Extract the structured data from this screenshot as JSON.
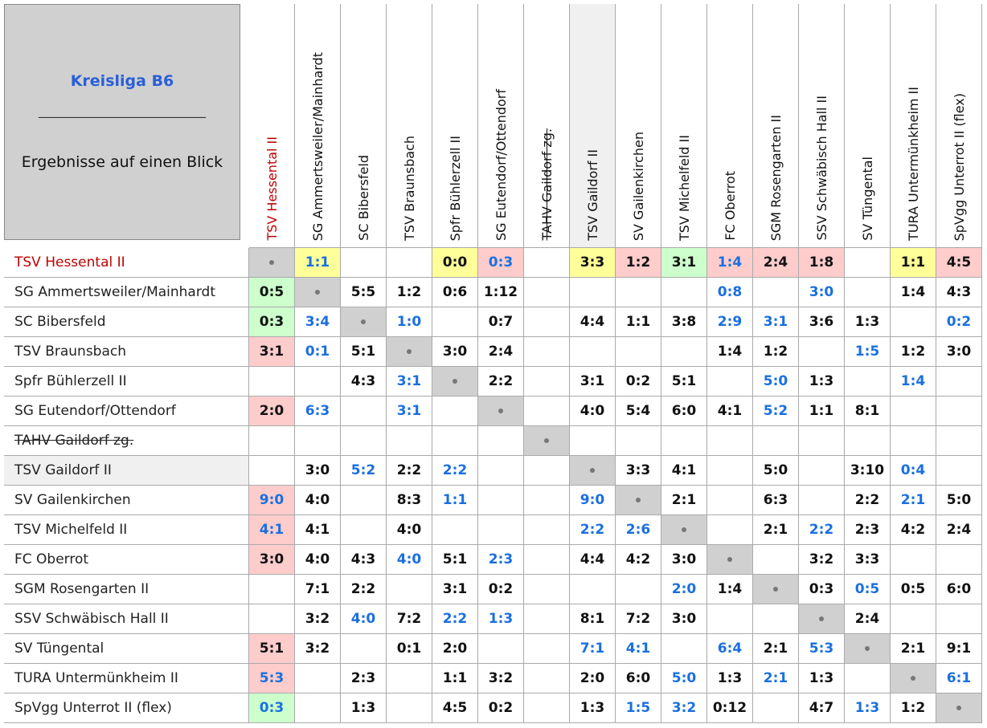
{
  "header": {
    "title": "Kreisliga B6",
    "divider": "__________________________",
    "subtitle": "Ergebnisse auf einen Blick"
  },
  "teams": [
    {
      "name": "TSV Hessental II",
      "color": "#c00000"
    },
    {
      "name": "SG Ammertsweiler/Mainhardt"
    },
    {
      "name": "SC Bibersfeld"
    },
    {
      "name": "TSV Braunsbach"
    },
    {
      "name": "Spfr Bühlerzell II"
    },
    {
      "name": "SG Eutendorf/Ottendorf"
    },
    {
      "name": "TAHV Gaildorf zg.",
      "strike": true
    },
    {
      "name": "TSV Gaildorf II",
      "shaded": true
    },
    {
      "name": "SV Gailenkirchen"
    },
    {
      "name": "TSV Michelfeld II"
    },
    {
      "name": "FC Oberrot"
    },
    {
      "name": "SGM Rosengarten II"
    },
    {
      "name": "SSV Schwäbisch Hall II"
    },
    {
      "name": "SV Tüngental"
    },
    {
      "name": "TURA Untermünkheim II"
    },
    {
      "name": "SpVgg Unterrot II (flex)"
    }
  ],
  "rows": [
    [
      null,
      {
        "score": "1:1",
        "fill": "#ffff99",
        "color": "#1a6fe0"
      },
      null,
      null,
      {
        "score": "0:0",
        "fill": "#ffff99"
      },
      {
        "score": "0:3",
        "fill": "#ffcccc",
        "color": "#1a6fe0"
      },
      null,
      {
        "score": "3:3",
        "fill": "#ffff99"
      },
      {
        "score": "1:2",
        "fill": "#ffcccc"
      },
      {
        "score": "3:1",
        "fill": "#ccffcc"
      },
      {
        "score": "1:4",
        "fill": "#ffcccc",
        "color": "#1a6fe0"
      },
      {
        "score": "2:4",
        "fill": "#ffcccc"
      },
      {
        "score": "1:8",
        "fill": "#ffcccc"
      },
      null,
      {
        "score": "1:1",
        "fill": "#ffff99"
      },
      {
        "score": "4:5",
        "fill": "#ffcccc"
      }
    ],
    [
      {
        "score": "0:5",
        "fill": "#ccffcc"
      },
      null,
      {
        "score": "5:5"
      },
      {
        "score": "1:2"
      },
      {
        "score": "0:6"
      },
      {
        "score": "1:12"
      },
      null,
      null,
      null,
      null,
      {
        "score": "0:8",
        "color": "#1a6fe0"
      },
      null,
      {
        "score": "3:0",
        "color": "#1a6fe0"
      },
      null,
      {
        "score": "1:4"
      },
      {
        "score": "4:3"
      }
    ],
    [
      {
        "score": "0:3",
        "fill": "#ccffcc"
      },
      {
        "score": "3:4",
        "color": "#1a6fe0"
      },
      null,
      {
        "score": "1:0",
        "color": "#1a6fe0"
      },
      null,
      {
        "score": "0:7"
      },
      null,
      {
        "score": "4:4"
      },
      {
        "score": "1:1"
      },
      {
        "score": "3:8"
      },
      {
        "score": "2:9",
        "color": "#1a6fe0"
      },
      {
        "score": "3:1",
        "color": "#1a6fe0"
      },
      {
        "score": "3:6"
      },
      {
        "score": "1:3"
      },
      null,
      {
        "score": "0:2",
        "color": "#1a6fe0"
      }
    ],
    [
      {
        "score": "3:1",
        "fill": "#ffcccc"
      },
      {
        "score": "0:1",
        "color": "#1a6fe0"
      },
      {
        "score": "5:1"
      },
      null,
      {
        "score": "3:0"
      },
      {
        "score": "2:4"
      },
      null,
      null,
      null,
      null,
      {
        "score": "1:4"
      },
      {
        "score": "1:2"
      },
      null,
      {
        "score": "1:5",
        "color": "#1a6fe0"
      },
      {
        "score": "1:2"
      },
      {
        "score": "3:0"
      }
    ],
    [
      null,
      null,
      {
        "score": "4:3"
      },
      {
        "score": "3:1",
        "color": "#1a6fe0"
      },
      null,
      {
        "score": "2:2"
      },
      null,
      {
        "score": "3:1"
      },
      {
        "score": "0:2"
      },
      {
        "score": "5:1"
      },
      null,
      {
        "score": "5:0",
        "color": "#1a6fe0"
      },
      {
        "score": "1:3"
      },
      null,
      {
        "score": "1:4",
        "color": "#1a6fe0"
      },
      null
    ],
    [
      {
        "score": "2:0",
        "fill": "#ffcccc"
      },
      {
        "score": "6:3",
        "color": "#1a6fe0"
      },
      null,
      {
        "score": "3:1",
        "color": "#1a6fe0"
      },
      null,
      null,
      null,
      {
        "score": "4:0"
      },
      {
        "score": "5:4"
      },
      {
        "score": "6:0"
      },
      {
        "score": "4:1"
      },
      {
        "score": "5:2",
        "color": "#1a6fe0"
      },
      {
        "score": "1:1"
      },
      {
        "score": "8:1"
      },
      null,
      null
    ],
    [
      null,
      null,
      null,
      null,
      null,
      null,
      null,
      null,
      null,
      null,
      null,
      null,
      null,
      null,
      null,
      null
    ],
    [
      null,
      {
        "score": "3:0"
      },
      {
        "score": "5:2",
        "color": "#1a6fe0"
      },
      {
        "score": "2:2"
      },
      {
        "score": "2:2",
        "color": "#1a6fe0"
      },
      null,
      null,
      null,
      {
        "score": "3:3"
      },
      {
        "score": "4:1"
      },
      null,
      {
        "score": "5:0"
      },
      null,
      {
        "score": "3:10"
      },
      {
        "score": "0:4",
        "color": "#1a6fe0"
      },
      null
    ],
    [
      {
        "score": "9:0",
        "fill": "#ffcccc",
        "color": "#1a6fe0"
      },
      {
        "score": "4:0"
      },
      null,
      {
        "score": "8:3"
      },
      {
        "score": "1:1",
        "color": "#1a6fe0"
      },
      null,
      null,
      {
        "score": "9:0",
        "color": "#1a6fe0"
      },
      null,
      {
        "score": "2:1"
      },
      null,
      {
        "score": "6:3"
      },
      null,
      {
        "score": "2:2"
      },
      {
        "score": "2:1",
        "color": "#1a6fe0"
      },
      {
        "score": "5:0"
      }
    ],
    [
      {
        "score": "4:1",
        "fill": "#ffcccc",
        "color": "#1a6fe0"
      },
      {
        "score": "4:1"
      },
      null,
      {
        "score": "4:0"
      },
      null,
      null,
      null,
      {
        "score": "2:2",
        "color": "#1a6fe0"
      },
      {
        "score": "2:6",
        "color": "#1a6fe0"
      },
      null,
      null,
      {
        "score": "2:1"
      },
      {
        "score": "2:2",
        "color": "#1a6fe0"
      },
      {
        "score": "2:3"
      },
      {
        "score": "4:2"
      },
      {
        "score": "2:4"
      }
    ],
    [
      {
        "score": "3:0",
        "fill": "#ffcccc"
      },
      {
        "score": "4:0"
      },
      {
        "score": "4:3"
      },
      {
        "score": "4:0",
        "color": "#1a6fe0"
      },
      {
        "score": "5:1"
      },
      {
        "score": "2:3",
        "color": "#1a6fe0"
      },
      null,
      {
        "score": "4:4"
      },
      {
        "score": "4:2"
      },
      {
        "score": "3:0"
      },
      null,
      null,
      {
        "score": "3:2"
      },
      {
        "score": "3:3"
      },
      null,
      null
    ],
    [
      null,
      {
        "score": "7:1"
      },
      {
        "score": "2:2"
      },
      null,
      {
        "score": "3:1"
      },
      {
        "score": "0:2"
      },
      null,
      null,
      null,
      {
        "score": "2:0",
        "color": "#1a6fe0"
      },
      {
        "score": "1:4"
      },
      null,
      {
        "score": "0:3"
      },
      {
        "score": "0:5",
        "color": "#1a6fe0"
      },
      {
        "score": "0:5"
      },
      {
        "score": "6:0"
      }
    ],
    [
      null,
      {
        "score": "3:2"
      },
      {
        "score": "4:0",
        "color": "#1a6fe0"
      },
      {
        "score": "7:2"
      },
      {
        "score": "2:2",
        "color": "#1a6fe0"
      },
      {
        "score": "1:3",
        "color": "#1a6fe0"
      },
      null,
      {
        "score": "8:1"
      },
      {
        "score": "7:2"
      },
      {
        "score": "3:0"
      },
      null,
      null,
      null,
      {
        "score": "2:4"
      },
      null,
      null
    ],
    [
      {
        "score": "5:1",
        "fill": "#ffcccc"
      },
      {
        "score": "3:2"
      },
      null,
      {
        "score": "0:1"
      },
      {
        "score": "2:0"
      },
      null,
      null,
      {
        "score": "7:1",
        "color": "#1a6fe0"
      },
      {
        "score": "4:1",
        "color": "#1a6fe0"
      },
      null,
      {
        "score": "6:4",
        "color": "#1a6fe0"
      },
      {
        "score": "2:1"
      },
      {
        "score": "5:3",
        "color": "#1a6fe0"
      },
      null,
      {
        "score": "2:1"
      },
      {
        "score": "9:1"
      }
    ],
    [
      {
        "score": "5:3",
        "fill": "#ffcccc",
        "color": "#1a6fe0"
      },
      null,
      {
        "score": "2:3"
      },
      null,
      {
        "score": "1:1"
      },
      {
        "score": "3:2"
      },
      null,
      {
        "score": "2:0"
      },
      {
        "score": "6:0"
      },
      {
        "score": "5:0",
        "color": "#1a6fe0"
      },
      {
        "score": "1:3"
      },
      {
        "score": "2:1",
        "color": "#1a6fe0"
      },
      {
        "score": "1:3"
      },
      null,
      null,
      {
        "score": "6:1",
        "color": "#1a6fe0"
      }
    ],
    [
      {
        "score": "0:3",
        "fill": "#ccffcc",
        "color": "#1a6fe0"
      },
      null,
      {
        "score": "1:3"
      },
      null,
      {
        "score": "4:5"
      },
      {
        "score": "0:2"
      },
      null,
      {
        "score": "1:3"
      },
      {
        "score": "1:5",
        "color": "#1a6fe0"
      },
      {
        "score": "3:2",
        "color": "#1a6fe0"
      },
      {
        "score": "0:12"
      },
      null,
      {
        "score": "4:7"
      },
      {
        "score": "1:3",
        "color": "#1a6fe0"
      },
      {
        "score": "1:2"
      },
      null
    ]
  ]
}
